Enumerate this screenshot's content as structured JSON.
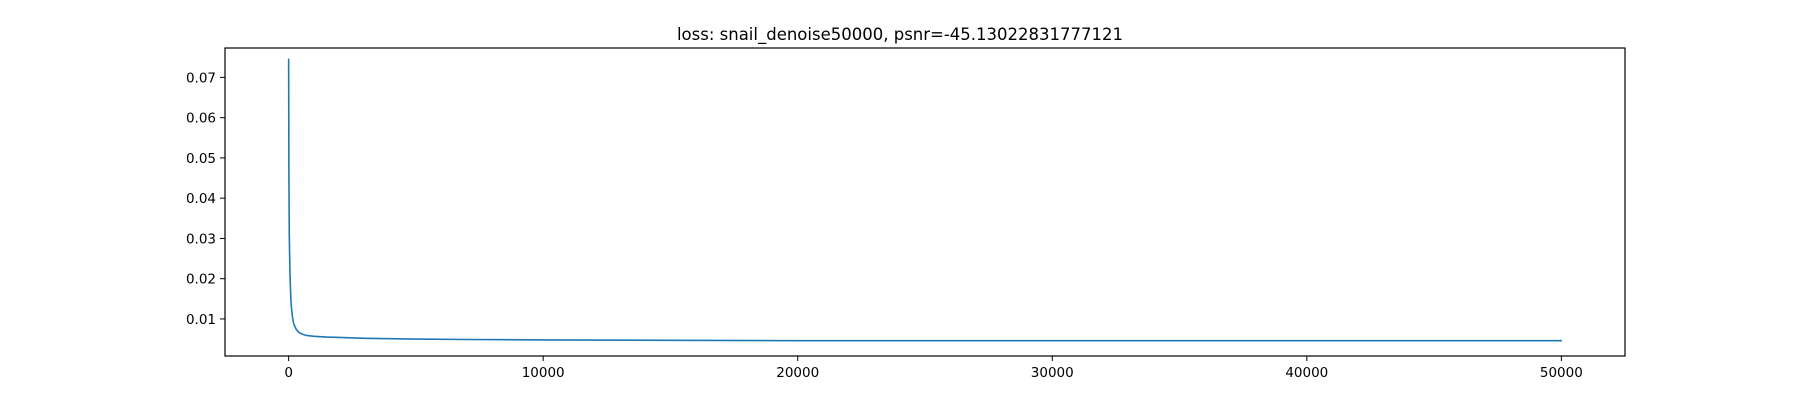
{
  "chart_data": {
    "type": "line",
    "title": "loss: snail_denoise50000, psnr=-45.13022831777121",
    "xlabel": "",
    "ylabel": "",
    "xlim": [
      -2500,
      52500
    ],
    "ylim": [
      0.0008,
      0.0773
    ],
    "xticks": [
      0,
      10000,
      20000,
      30000,
      40000,
      50000
    ],
    "xtick_labels": [
      "0",
      "10000",
      "20000",
      "30000",
      "40000",
      "50000"
    ],
    "yticks": [
      0.01,
      0.02,
      0.03,
      0.04,
      0.05,
      0.06,
      0.07
    ],
    "ytick_labels": [
      "0.01",
      "0.02",
      "0.03",
      "0.04",
      "0.05",
      "0.06",
      "0.07"
    ],
    "grid": false,
    "series": [
      {
        "name": "loss",
        "color": "#1f77b4",
        "x": [
          0,
          10,
          25,
          50,
          75,
          100,
          150,
          200,
          300,
          400,
          500,
          700,
          1000,
          1500,
          2000,
          3000,
          4000,
          5000,
          7000,
          10000,
          15000,
          20000,
          25000,
          30000,
          35000,
          40000,
          45000,
          50000
        ],
        "y": [
          0.0745,
          0.047,
          0.031,
          0.022,
          0.017,
          0.0135,
          0.0105,
          0.0088,
          0.0074,
          0.0067,
          0.0063,
          0.0059,
          0.0057,
          0.0055,
          0.0054,
          0.0052,
          0.0051,
          0.005,
          0.0049,
          0.0048,
          0.0047,
          0.0046,
          0.0046,
          0.0046,
          0.0046,
          0.0046,
          0.0046,
          0.0046
        ]
      }
    ]
  }
}
